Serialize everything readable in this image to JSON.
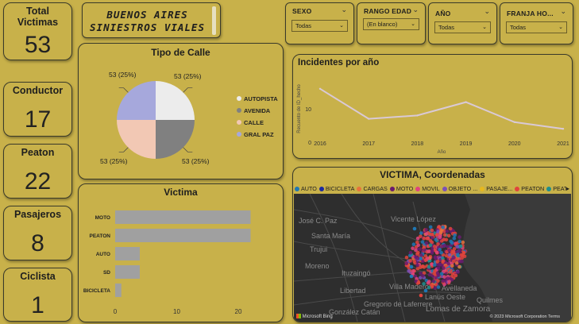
{
  "kpis": [
    {
      "label": "Total Victimas",
      "value": "53"
    },
    {
      "label": "Conductor",
      "value": "17"
    },
    {
      "label": "Peaton",
      "value": "22"
    },
    {
      "label": "Pasajeros",
      "value": "8"
    },
    {
      "label": "Ciclista",
      "value": "1"
    }
  ],
  "title": {
    "line1": "BUENOS AIRES",
    "line2": "SINIESTROS VIALES"
  },
  "slicers": [
    {
      "label": "SEXO",
      "value": "Todas"
    },
    {
      "label": "RANGO EDAD",
      "value": "(En blanco)"
    },
    {
      "label": "AÑO",
      "value": "Todas"
    },
    {
      "label": "FRANJA HO...",
      "value": "Todas"
    }
  ],
  "pie": {
    "title": "Tipo de Calle",
    "slices": [
      {
        "name": "AUTOPISTA",
        "value": 25,
        "label": "53 (25%)",
        "color": "#ececec"
      },
      {
        "name": "AVENIDA",
        "value": 25,
        "label": "53 (25%)",
        "color": "#808080"
      },
      {
        "name": "CALLE",
        "value": 25,
        "label": "53 (25%)",
        "color": "#f2c8b4"
      },
      {
        "name": "GRAL PAZ",
        "value": 25,
        "label": "53 (25%)",
        "color": "#a6a8dc"
      }
    ]
  },
  "line_chart": {
    "title": "Incidentes por año",
    "xlabel": "Año",
    "ylabel": "Recuento de ID_hecho",
    "x": [
      "2016",
      "2017",
      "2018",
      "2019",
      "2020",
      "2021"
    ],
    "values": [
      16,
      7,
      8,
      12,
      6,
      4
    ],
    "yticks": [
      "0",
      "10"
    ],
    "ylim": [
      0,
      20
    ],
    "color": "#d9c9d6"
  },
  "bar_chart": {
    "title": "Victima",
    "categories": [
      "MOTO",
      "PEATON",
      "AUTO",
      "SD",
      "BICICLETA"
    ],
    "values": [
      22,
      22,
      4,
      4,
      1
    ],
    "xticks": [
      "0",
      "10",
      "20"
    ],
    "xlim": [
      0,
      24
    ],
    "color": "#a0a0a0"
  },
  "map": {
    "title": "VICTIMA, Coordenadas",
    "legend": [
      {
        "name": "AUTO",
        "color": "#1f77b4"
      },
      {
        "name": "BICICLETA",
        "color": "#1c2aa0"
      },
      {
        "name": "CARGAS",
        "color": "#e8723c"
      },
      {
        "name": "MOTO",
        "color": "#6a1b6e"
      },
      {
        "name": "MOVIL",
        "color": "#e0447e"
      },
      {
        "name": "OBJETO ...",
        "color": "#7b50b8"
      },
      {
        "name": "PASAJE...",
        "color": "#e6b81f"
      },
      {
        "name": "PEATON",
        "color": "#e0443c"
      },
      {
        "name": "PEATON",
        "color": "#1f8f8f"
      }
    ],
    "places": [
      {
        "name": "José C. Paz",
        "x": 6,
        "y": 37
      },
      {
        "name": "Vicente López",
        "x": 122,
        "y": 35
      },
      {
        "name": "Santa María",
        "x": 22,
        "y": 56
      },
      {
        "name": "Trujui",
        "x": 20,
        "y": 73
      },
      {
        "name": "Moreno",
        "x": 14,
        "y": 94
      },
      {
        "name": "Ituzaingó",
        "x": 60,
        "y": 103
      },
      {
        "name": "Villa Madero",
        "x": 120,
        "y": 120
      },
      {
        "name": "Avellaneda",
        "x": 186,
        "y": 122
      },
      {
        "name": "Libertad",
        "x": 58,
        "y": 125
      },
      {
        "name": "Lanús Oeste",
        "x": 165,
        "y": 133
      },
      {
        "name": "Quilmes",
        "x": 230,
        "y": 137
      },
      {
        "name": "Gregorio de Laferrere",
        "x": 88,
        "y": 142
      },
      {
        "name": "Lomas de Zamora",
        "x": 166,
        "y": 148
      },
      {
        "name": "González Catán",
        "x": 44,
        "y": 152
      }
    ],
    "footer_left": "Microsoft Bing",
    "footer_right": "© 2023 Microsoft Corporation  Terms"
  }
}
